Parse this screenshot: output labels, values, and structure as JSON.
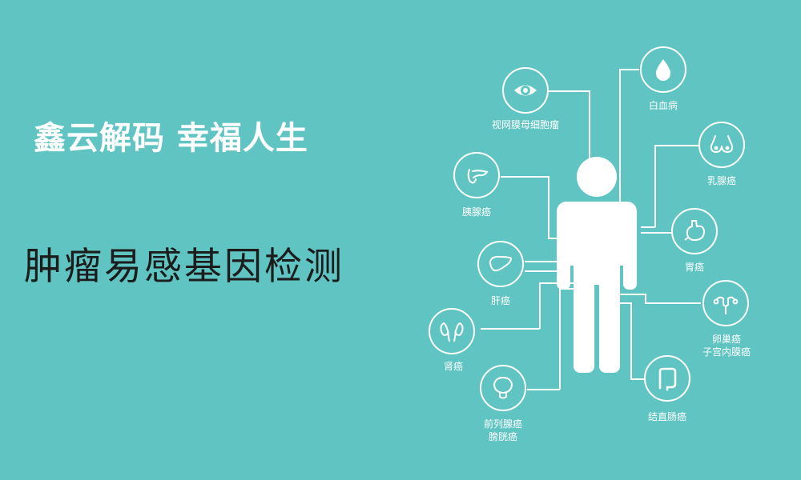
{
  "slogan": "鑫云解码 幸福人生",
  "title": "肿瘤易感基因检测",
  "organs": {
    "retina": "视网膜母细胞瘤",
    "leukemia": "白血病",
    "breast": "乳腺癌",
    "pancreas": "胰腺癌",
    "stomach": "胃癌",
    "liver": "肝癌",
    "ovary_line1": "卵巢癌",
    "ovary_line2": "子宫内膜癌",
    "kidney": "肾癌",
    "prostate_line1": "前列腺癌",
    "prostate_line2": "膀胱癌",
    "colon": "结直肠癌"
  },
  "colors": {
    "background": "#5fc4c2",
    "foreground": "#ffffff",
    "title": "#1c1c1c"
  }
}
